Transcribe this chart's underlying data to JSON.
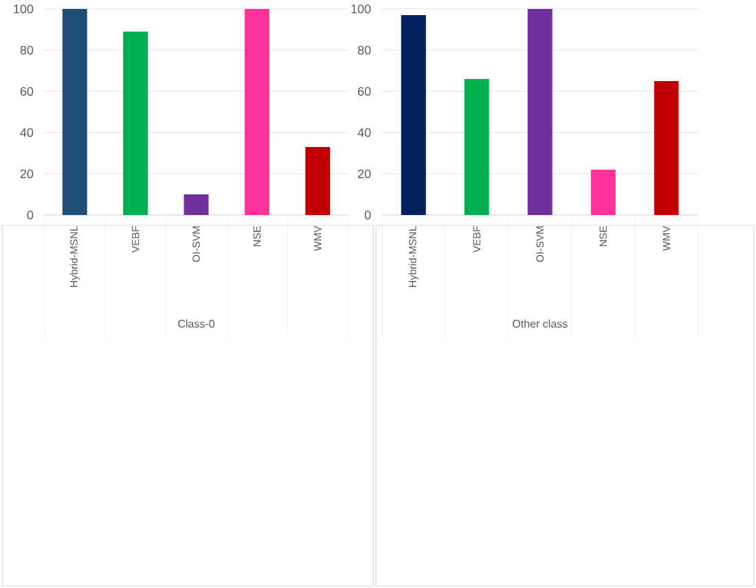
{
  "chart_data": [
    {
      "type": "bar",
      "categories": [
        "Hybrid-MSNL",
        "VEBF",
        "OI-SVM",
        "NSE",
        "WMV"
      ],
      "values": [
        100,
        89,
        10,
        100,
        33
      ],
      "colors": [
        "#1f4e79",
        "#00b050",
        "#7030a0",
        "#ff3399",
        "#c00000"
      ],
      "xlabel": "Class-0",
      "ylim": [
        0,
        100
      ],
      "yticks": [
        0,
        20,
        40,
        60,
        80,
        100
      ],
      "grid": "y"
    },
    {
      "type": "bar",
      "categories": [
        "Hybrid-MSNL",
        "VEBF",
        "OI-SVM",
        "NSE",
        "WMV"
      ],
      "values": [
        97,
        66,
        100,
        22,
        65
      ],
      "colors": [
        "#002060",
        "#00b050",
        "#7030a0",
        "#ff3399",
        "#c00000"
      ],
      "xlabel": "Other class",
      "ylim": [
        0,
        100
      ],
      "yticks": [
        0,
        20,
        40,
        60,
        80,
        100
      ],
      "grid": "y"
    }
  ]
}
